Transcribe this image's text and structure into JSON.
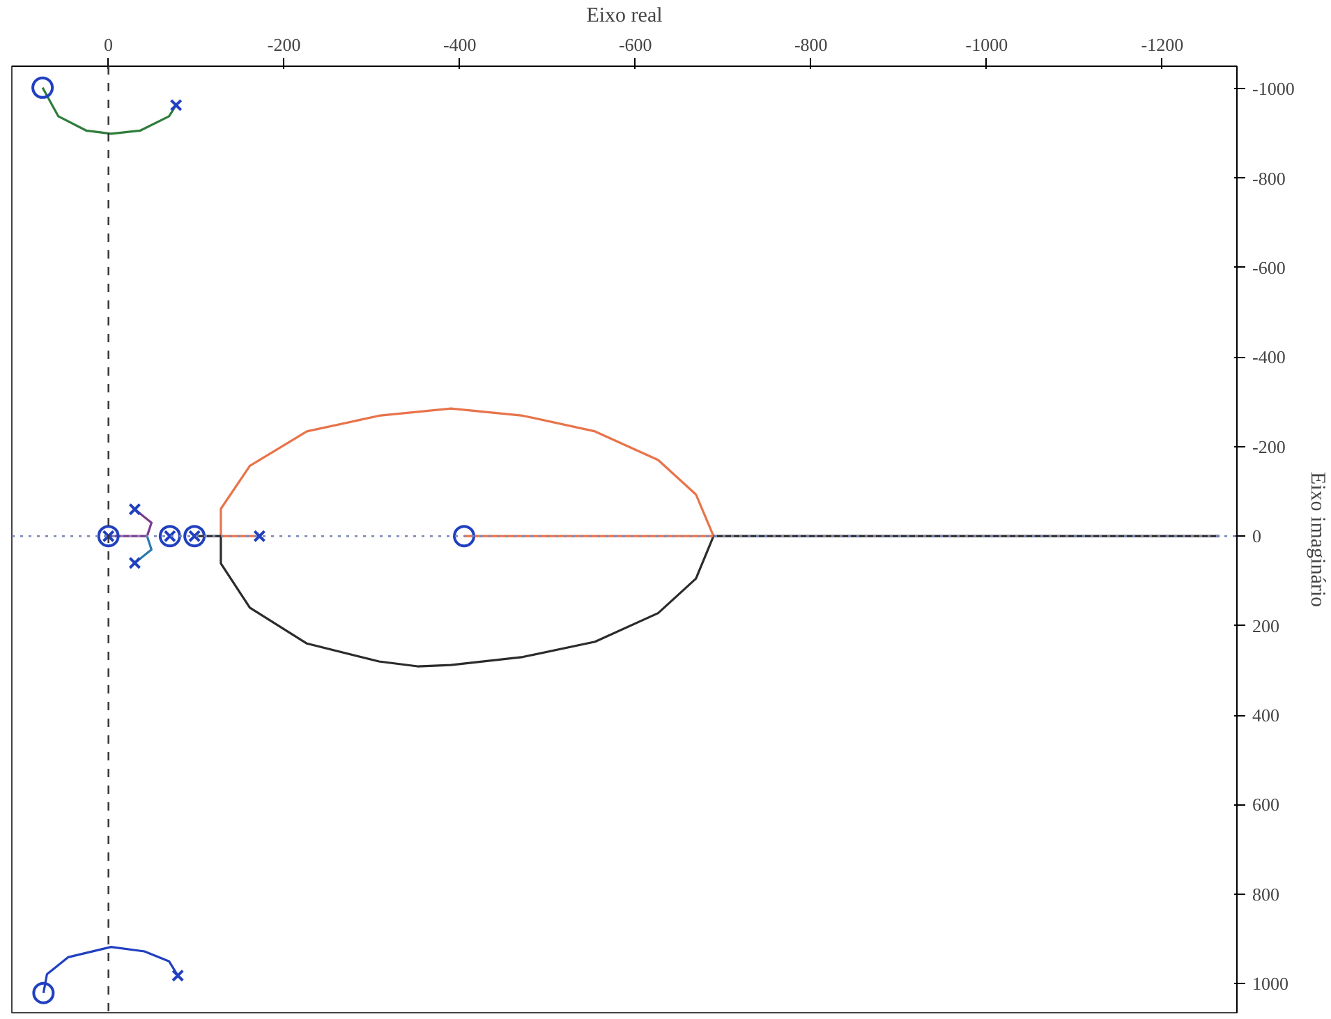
{
  "chart_data": {
    "type": "line",
    "xlabel": "Eixo real",
    "ylabel": "Eixo imaginário",
    "xlim": [
      110,
      -1285
    ],
    "ylim": [
      1065,
      -1050
    ],
    "xticks": [
      0,
      -200,
      -400,
      -600,
      -800,
      -1000,
      -1200
    ],
    "yticks": [
      -1000,
      -800,
      -600,
      -400,
      -200,
      0,
      200,
      400,
      600,
      800,
      1000
    ],
    "grid": false,
    "line_style": "solid",
    "ref_lines": [
      {
        "axis": "x",
        "value": 0,
        "color": "#333333",
        "line_style": "dashed"
      },
      {
        "axis": "y",
        "value": 0,
        "color": "#7a86b8",
        "line_style": "dotted"
      }
    ],
    "series": [
      {
        "color": "#e8734a",
        "x": [
          -172,
          -128,
          -128,
          -161,
          -226,
          -308,
          -390,
          -472,
          -554,
          -626,
          -669,
          -689
        ],
        "values": [
          0,
          0,
          -61,
          -157,
          -234,
          -269,
          -285,
          -269,
          -234,
          -170,
          -93,
          0
        ]
      },
      {
        "color": "#2b2b2b",
        "x": [
          -98,
          -128,
          -128,
          -161,
          -226,
          -308,
          -352,
          -390,
          -472,
          -554,
          -626,
          -669,
          -689,
          -1265
        ],
        "values": [
          0,
          0,
          61,
          160,
          240,
          280,
          291,
          288,
          270,
          236,
          172,
          95,
          0,
          0
        ]
      },
      {
        "color": "#e8734a",
        "x": [
          -405,
          -689
        ],
        "values": [
          0,
          0
        ]
      },
      {
        "color": "#2e7d3a",
        "x": [
          75,
          57,
          25,
          -3,
          -36,
          -69,
          -77
        ],
        "values": [
          -1002,
          -938,
          -906,
          -899,
          -906,
          -938,
          -963
        ]
      },
      {
        "color": "#2140c0",
        "x": [
          74,
          70,
          46,
          -3,
          -41,
          -69,
          -79
        ],
        "values": [
          1021,
          979,
          941,
          918,
          928,
          950,
          982
        ]
      },
      {
        "color": "#7a3c8c",
        "x": [
          -30,
          -49,
          -44
        ],
        "values": [
          -60,
          -30,
          0
        ]
      },
      {
        "color": "#2a7ab0",
        "x": [
          -30,
          -49,
          -44
        ],
        "values": [
          60,
          30,
          0
        ]
      },
      {
        "color": "#7a3c8c",
        "x": [
          0,
          -44
        ],
        "values": [
          0,
          0
        ]
      },
      {
        "type": "scatter",
        "marker": "cross",
        "color": "#2140c0",
        "x": [
          0,
          -70,
          -98,
          -30,
          -30,
          -172,
          -77,
          -79
        ],
        "values": [
          0,
          0,
          0,
          -60,
          60,
          0,
          -963,
          982
        ]
      },
      {
        "type": "scatter",
        "marker": "circle",
        "color": "#2140c0",
        "x": [
          0,
          -70,
          -98,
          -405,
          75,
          74
        ],
        "values": [
          0,
          0,
          0,
          0,
          -1002,
          1021
        ]
      }
    ]
  }
}
